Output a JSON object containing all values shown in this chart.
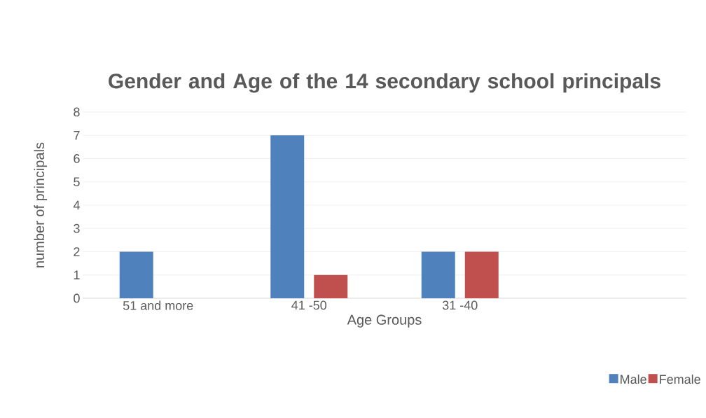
{
  "chart_data": {
    "type": "bar",
    "title": "Gender and Age of the 14 secondary school principals",
    "xlabel": "Age Groups",
    "ylabel": "number of principals",
    "categories": [
      "51 and more",
      "41 -50",
      "31 -40",
      null
    ],
    "series": [
      {
        "name": "Male",
        "color": "#4f81bd",
        "values": [
          2,
          7,
          2,
          null
        ]
      },
      {
        "name": "Female",
        "color": "#c0504d",
        "values": [
          null,
          1,
          2,
          null
        ]
      }
    ],
    "ylim": [
      0,
      8
    ],
    "yticks": [
      0,
      1,
      2,
      3,
      4,
      5,
      6,
      7,
      8
    ],
    "grid": "y",
    "legend": "bottom right"
  }
}
